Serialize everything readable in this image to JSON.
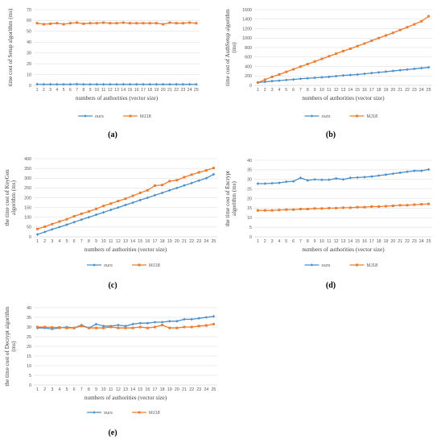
{
  "colors": {
    "ours": "#4a8fc9",
    "mj18": "#ed7d31"
  },
  "chart_data": [
    {
      "type": "line",
      "caption": "(a)",
      "xlabel": "numbers of authorities (vector size)",
      "ylabel": [
        "time cost of Setup algorithm (ms)"
      ],
      "categories": [
        "1",
        "2",
        "3",
        "4",
        "5",
        "6",
        "7",
        "8",
        "9",
        "10",
        "11",
        "12",
        "13",
        "14",
        "15",
        "16",
        "17",
        "18",
        "19",
        "20",
        "21",
        "22",
        "23",
        "24",
        "25"
      ],
      "ylim": [
        0,
        70
      ],
      "yticks": [
        "0",
        "10",
        "20",
        "30",
        "40",
        "50",
        "60",
        "70"
      ],
      "legend_position": "bottom",
      "series": [
        {
          "name": "ours",
          "color_key": "ours",
          "values": [
            1.1,
            1.0,
            1.0,
            1.0,
            1.0,
            1.0,
            1.2,
            1.0,
            1.0,
            1.0,
            1.0,
            1.0,
            1.0,
            1.0,
            1.0,
            1.0,
            1.0,
            1.0,
            1.0,
            1.0,
            1.0,
            1.0,
            1.0,
            1.0,
            1.0
          ]
        },
        {
          "name": "MJ18",
          "color_key": "mj18",
          "values": [
            57.5,
            56.5,
            57,
            57.5,
            56.5,
            57.5,
            58,
            57,
            57.5,
            57.5,
            58,
            57.5,
            57.5,
            58,
            57.5,
            57.5,
            57.5,
            57.5,
            57.5,
            56.5,
            58,
            57.5,
            57.5,
            58,
            57.5
          ]
        }
      ]
    },
    {
      "type": "line",
      "caption": "(b)",
      "xlabel": "numbers of authorities (vector size)",
      "ylabel": [
        "time cost of AuthSetup algorithm",
        "(ms)"
      ],
      "categories": [
        "1",
        "2",
        "3",
        "4",
        "5",
        "6",
        "7",
        "8",
        "9",
        "10",
        "11",
        "12",
        "13",
        "14",
        "15",
        "16",
        "17",
        "18",
        "19",
        "20",
        "21",
        "22",
        "23",
        "24",
        "25"
      ],
      "ylim": [
        0,
        1600
      ],
      "yticks": [
        "0",
        "200",
        "400",
        "600",
        "800",
        "1000",
        "1200",
        "1400",
        "1600"
      ],
      "legend_position": "bottom",
      "series": [
        {
          "name": "ours",
          "color_key": "ours",
          "values": [
            60,
            75,
            90,
            100,
            115,
            125,
            140,
            150,
            160,
            170,
            180,
            195,
            210,
            220,
            230,
            245,
            260,
            275,
            290,
            305,
            320,
            335,
            350,
            365,
            380
          ]
        },
        {
          "name": "MJ18",
          "color_key": "mj18",
          "values": [
            60,
            120,
            180,
            230,
            285,
            340,
            395,
            450,
            505,
            560,
            615,
            670,
            725,
            775,
            830,
            885,
            945,
            1000,
            1055,
            1110,
            1170,
            1230,
            1290,
            1355,
            1460
          ]
        }
      ]
    },
    {
      "type": "line",
      "caption": "(c)",
      "xlabel": "numbers of authorities (vector size)",
      "ylabel": [
        "the time cost of KeyGen",
        "algorithm (ms)"
      ],
      "categories": [
        "1",
        "2",
        "3",
        "4",
        "5",
        "6",
        "7",
        "8",
        "9",
        "10",
        "11",
        "12",
        "13",
        "14",
        "15",
        "16",
        "17",
        "18",
        "19",
        "20",
        "21",
        "22",
        "23",
        "24",
        "25"
      ],
      "ylim": [
        0,
        400
      ],
      "yticks": [
        "0",
        "50",
        "100",
        "150",
        "200",
        "250",
        "300",
        "350",
        "400"
      ],
      "legend_position": "bottom",
      "series": [
        {
          "name": "ours",
          "color_key": "ours",
          "values": [
            12,
            25,
            38,
            50,
            62,
            75,
            88,
            100,
            113,
            125,
            138,
            150,
            163,
            175,
            188,
            200,
            213,
            225,
            238,
            250,
            263,
            275,
            288,
            300,
            320
          ]
        },
        {
          "name": "MJ18",
          "color_key": "mj18",
          "values": [
            40,
            52,
            65,
            78,
            90,
            105,
            118,
            130,
            143,
            158,
            170,
            183,
            195,
            210,
            225,
            238,
            262,
            265,
            285,
            290,
            305,
            318,
            330,
            340,
            352
          ]
        }
      ]
    },
    {
      "type": "line",
      "caption": "(d)",
      "xlabel": "numbers of authorities (vector size)",
      "ylabel": [
        "the time cost of Encrypt",
        "algorithm (ms)"
      ],
      "categories": [
        "1",
        "2",
        "3",
        "4",
        "5",
        "6",
        "7",
        "8",
        "9",
        "10",
        "11",
        "12",
        "13",
        "14",
        "15",
        "16",
        "17",
        "18",
        "19",
        "20",
        "21",
        "22",
        "23",
        "24",
        "25"
      ],
      "ylim": [
        0,
        40
      ],
      "yticks": [
        "0",
        "5",
        "10",
        "15",
        "20",
        "25",
        "30",
        "35",
        "40"
      ],
      "legend_position": "bottom",
      "series": [
        {
          "name": "ours",
          "color_key": "ours",
          "values": [
            27.8,
            27.8,
            28,
            28.2,
            28.8,
            29,
            30.8,
            29.5,
            30,
            29.8,
            29.8,
            30.5,
            30,
            30.8,
            31,
            31.2,
            31.5,
            32,
            32.5,
            33,
            33.5,
            34,
            34.5,
            34.5,
            35.2
          ]
        },
        {
          "name": "MJ18",
          "color_key": "mj18",
          "values": [
            13.8,
            13.8,
            13.8,
            14,
            14.2,
            14.2,
            14.5,
            14.5,
            14.8,
            14.8,
            15,
            15,
            15.2,
            15.2,
            15.5,
            15.5,
            15.8,
            15.8,
            16,
            16.2,
            16.5,
            16.5,
            16.8,
            17,
            17.2
          ]
        }
      ]
    },
    {
      "type": "line",
      "caption": "(e)",
      "xlabel": "numbers of authorities (vector size)",
      "ylabel": [
        "the time cost of Decrypt algorithm",
        "(ms)"
      ],
      "categories": [
        "1",
        "2",
        "3",
        "4",
        "5",
        "6",
        "7",
        "8",
        "9",
        "10",
        "11",
        "12",
        "13",
        "14",
        "15",
        "16",
        "17",
        "18",
        "19",
        "20",
        "21",
        "22",
        "23",
        "24",
        "25"
      ],
      "ylim": [
        0,
        40
      ],
      "yticks": [
        "0",
        "5",
        "10",
        "15",
        "20",
        "25",
        "30",
        "35",
        "40"
      ],
      "legend_position": "bottom",
      "series": [
        {
          "name": "ours",
          "color_key": "ours",
          "values": [
            29.5,
            29.5,
            29,
            29.5,
            30,
            29.5,
            31,
            29.5,
            31.5,
            30.5,
            30.5,
            31,
            30.5,
            31.5,
            32,
            32,
            32.5,
            32.5,
            33,
            33,
            34,
            34,
            34.5,
            35,
            35.5
          ]
        },
        {
          "name": "MJ18",
          "color_key": "mj18",
          "values": [
            30,
            30,
            29.8,
            29.8,
            29.5,
            29.5,
            30.5,
            29.5,
            29.5,
            29.5,
            30,
            29.5,
            29.5,
            29.5,
            30,
            29.5,
            30,
            31,
            29.5,
            29.5,
            30,
            30,
            30.5,
            30.8,
            31.5
          ]
        }
      ]
    }
  ]
}
